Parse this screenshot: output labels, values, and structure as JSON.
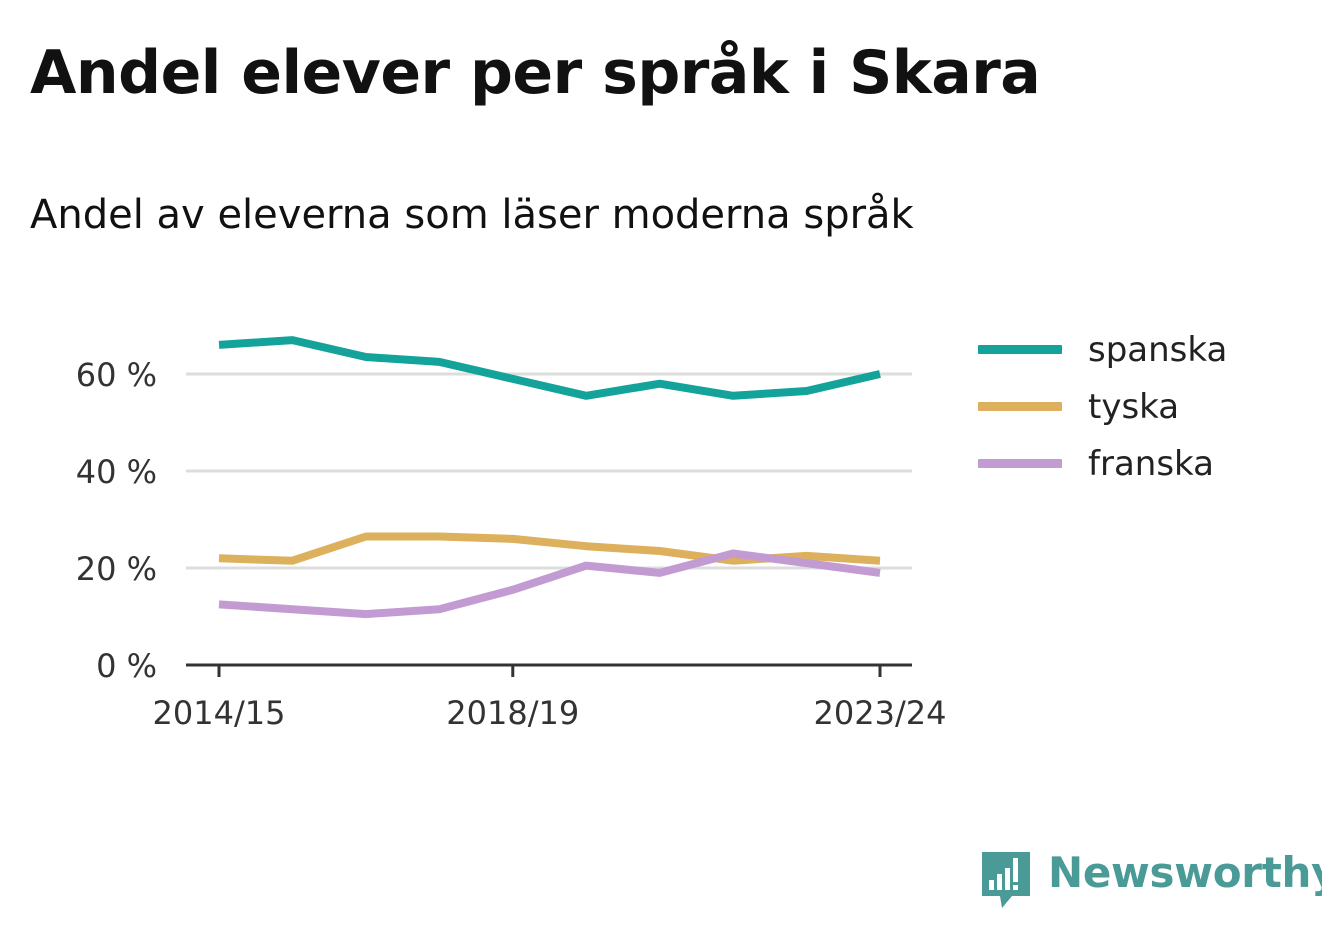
{
  "title": "Andel elever per språk i Skara",
  "subtitle": "Andel av eleverna som läser moderna språk",
  "brand": {
    "name": "Newsworthy",
    "icon": "bar-chart-speech-bubble-icon",
    "color": "#4a9a97"
  },
  "chart_data": {
    "type": "line",
    "x": [
      "2014/15",
      "2015/16",
      "2016/17",
      "2017/18",
      "2018/19",
      "2019/20",
      "2020/21",
      "2021/22",
      "2022/23",
      "2023/24"
    ],
    "x_tick_labels": [
      "2014/15",
      "2018/19",
      "2023/24"
    ],
    "y_ticks": [
      0,
      20,
      40,
      60
    ],
    "y_tick_labels": [
      "0 %",
      "20 %",
      "40 %",
      "60 %"
    ],
    "ylim": [
      0,
      70
    ],
    "grid": true,
    "legend_position": "right",
    "series": [
      {
        "name": "spanska",
        "color": "#14a39a",
        "values": [
          66.0,
          67.0,
          63.5,
          62.5,
          59.0,
          55.5,
          58.0,
          55.5,
          56.5,
          60.0
        ]
      },
      {
        "name": "tyska",
        "color": "#dcb05c",
        "values": [
          22.0,
          21.5,
          26.5,
          26.5,
          26.0,
          24.5,
          23.5,
          21.5,
          22.5,
          21.5
        ]
      },
      {
        "name": "franska",
        "color": "#c39bd3",
        "values": [
          12.5,
          11.5,
          10.5,
          11.5,
          15.5,
          20.5,
          19.0,
          23.0,
          21.0,
          19.0
        ]
      }
    ]
  }
}
